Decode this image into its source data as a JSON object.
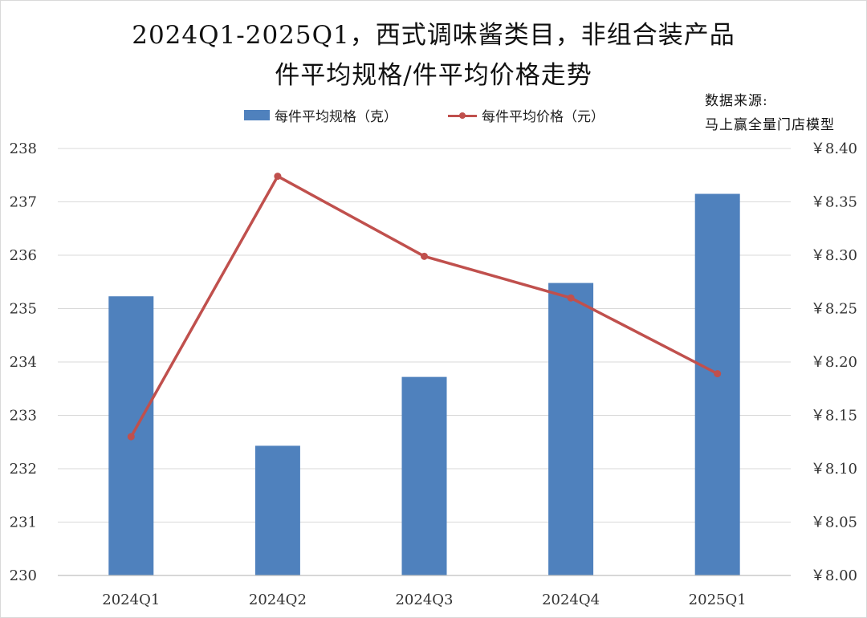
{
  "title_line1": "2024Q1-2025Q1，西式调味酱类目，非组合装产品",
  "title_line2": "件平均规格/件平均价格走势",
  "source_line1": "数据来源:",
  "source_line2": "马上赢全量门店模型",
  "legend": {
    "bar_label": "每件平均规格（克）",
    "line_label": "每件平均价格（元）"
  },
  "colors": {
    "bar": "#4f81bd",
    "line": "#c0504d",
    "grid": "#d9d9d9"
  },
  "chart_data": {
    "type": "bar",
    "categories": [
      "2024Q1",
      "2024Q2",
      "2024Q3",
      "2024Q4",
      "2025Q1"
    ],
    "series": [
      {
        "name": "每件平均规格（克）",
        "type": "bar",
        "axis": "left",
        "values": [
          235.23,
          232.43,
          233.72,
          235.48,
          237.15
        ]
      },
      {
        "name": "每件平均价格（元）",
        "type": "line",
        "axis": "right",
        "values": [
          8.13,
          8.374,
          8.299,
          8.26,
          8.189
        ]
      }
    ],
    "y_left": {
      "lim": [
        230,
        238
      ],
      "ticks": [
        "230",
        "231",
        "232",
        "233",
        "234",
        "235",
        "236",
        "237",
        "238"
      ]
    },
    "y_right": {
      "lim": [
        8.0,
        8.4
      ],
      "ticks": [
        "￥8.00",
        "￥8.05",
        "￥8.10",
        "￥8.15",
        "￥8.20",
        "￥8.25",
        "￥8.30",
        "￥8.35",
        "￥8.40"
      ]
    },
    "grid": true,
    "legend_position": "top"
  }
}
